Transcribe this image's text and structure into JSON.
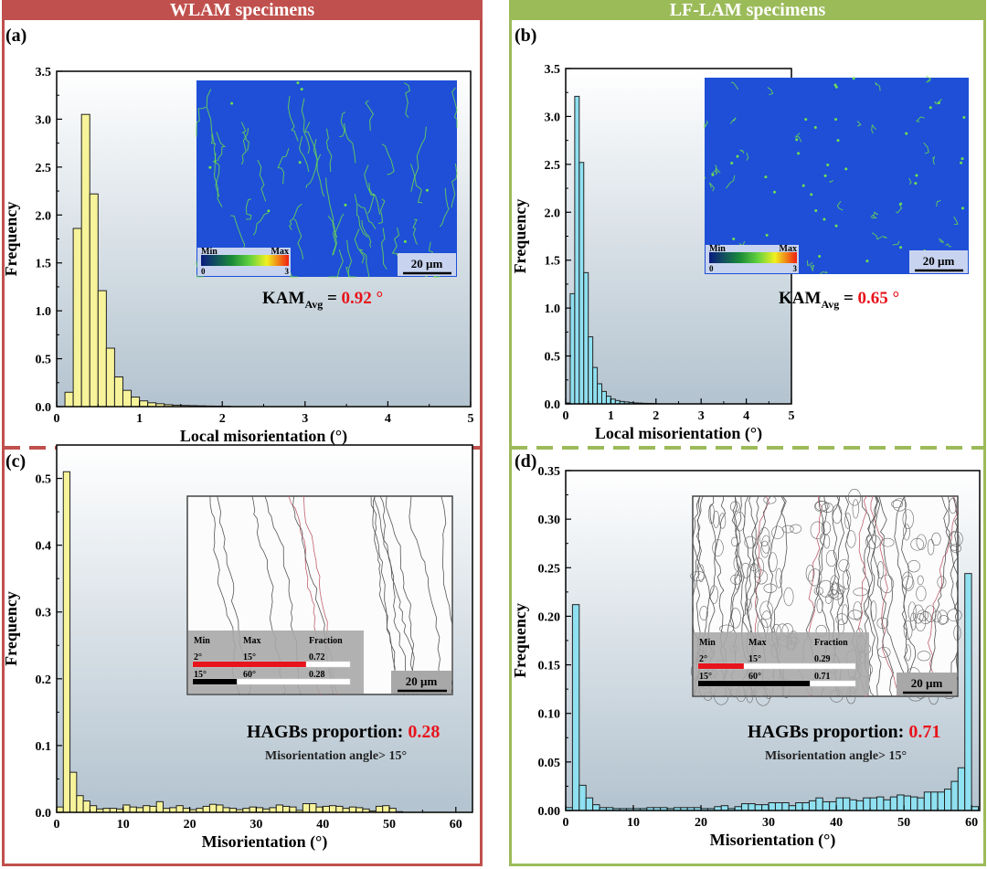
{
  "headers": {
    "left": "WLAM specimens",
    "right": "LF-LAM specimens"
  },
  "colors": {
    "left_frame": "#c0504d",
    "right_frame": "#9bbb59",
    "yellow_bar": "#f7f39a",
    "cyan_bar": "#8fe0f0",
    "highlight": "#e8141c"
  },
  "panels": {
    "a": {
      "label": "(a)",
      "kam_prefix": "KAM",
      "kam_sub": "Avg",
      "kam_eq": " = ",
      "kam_value": "0.92 °",
      "colorbar": {
        "min_label": "Min",
        "max_label": "Max",
        "min_value": "0",
        "max_value": "3"
      },
      "scale_bar": "20 µm"
    },
    "b": {
      "label": "(b)",
      "kam_prefix": "KAM",
      "kam_sub": "Avg",
      "kam_eq": " = ",
      "kam_value": "0.65 °",
      "colorbar": {
        "min_label": "Min",
        "max_label": "Max",
        "min_value": "0",
        "max_value": "3"
      },
      "scale_bar": "20 µm"
    },
    "c": {
      "label": "(c)",
      "hagb_label": "HAGBs proportion: ",
      "hagb_value": "0.28",
      "note": "Misorientation angle> 15°",
      "legend": {
        "headers": [
          "Min",
          "Max",
          "Fraction"
        ],
        "rows": [
          [
            "2°",
            "15°",
            "0.72"
          ],
          [
            "15°",
            "60°",
            "0.28"
          ]
        ],
        "fractions": [
          0.72,
          0.28
        ]
      },
      "scale_bar": "20 µm"
    },
    "d": {
      "label": "(d)",
      "hagb_label": "HAGBs proportion: ",
      "hagb_value": "0.71",
      "note": "Misorientation angle> 15°",
      "legend": {
        "headers": [
          "Min",
          "Max",
          "Fraction"
        ],
        "rows": [
          [
            "2°",
            "15°",
            "0.29"
          ],
          [
            "15°",
            "60°",
            "0.71"
          ]
        ],
        "fractions": [
          0.29,
          0.71
        ]
      },
      "scale_bar": "20 µm"
    }
  },
  "chart_data": [
    {
      "id": "a",
      "type": "bar",
      "title": "",
      "xlabel": "Local misorientation (°)",
      "ylabel": "Frequency",
      "xlim": [
        0,
        5
      ],
      "ylim": [
        0,
        3.5
      ],
      "bin_width": 0.1,
      "bin_start": 0.1,
      "xticks": [
        "0",
        "1",
        "2",
        "3",
        "4",
        "5"
      ],
      "yticks": [
        "0.0",
        "0.5",
        "1.0",
        "1.5",
        "2.0",
        "2.5",
        "3.0",
        "3.5"
      ],
      "values": [
        0.15,
        1.86,
        3.05,
        2.22,
        1.21,
        0.61,
        0.31,
        0.17,
        0.1,
        0.06,
        0.04,
        0.03,
        0.02,
        0.015,
        0.012,
        0.01,
        0.008,
        0.006,
        0.005,
        0.004
      ]
    },
    {
      "id": "b",
      "type": "bar",
      "title": "",
      "xlabel": "Local misorientation (°)",
      "ylabel": "Frequency",
      "xlim": [
        0,
        5
      ],
      "ylim": [
        0,
        3.5
      ],
      "bin_width": 0.1,
      "bin_start": 0.0,
      "xticks": [
        "0",
        "1",
        "2",
        "3",
        "4",
        "5"
      ],
      "yticks": [
        "0.0",
        "0.5",
        "1.0",
        "1.5",
        "2.0",
        "2.5",
        "3.0",
        "3.5"
      ],
      "values": [
        0.01,
        1.15,
        3.21,
        2.52,
        1.37,
        0.7,
        0.38,
        0.21,
        0.13,
        0.08,
        0.05,
        0.035,
        0.025,
        0.02,
        0.015,
        0.01,
        0.008,
        0.006,
        0.005,
        0.004
      ]
    },
    {
      "id": "c",
      "type": "bar",
      "title": "",
      "xlabel": "Misorientation (°)",
      "ylabel": "Frequency",
      "xlim": [
        0,
        62.5
      ],
      "ylim": [
        0,
        0.55
      ],
      "bin_width": 1,
      "bin_start": 0,
      "xticks": [
        "0",
        "10",
        "20",
        "30",
        "40",
        "50",
        "60"
      ],
      "yticks": [
        "0.0",
        "0.1",
        "0.2",
        "0.3",
        "0.4",
        "0.5"
      ],
      "values": [
        0.008,
        0.51,
        0.06,
        0.025,
        0.017,
        0.01,
        0.005,
        0.006,
        0.006,
        0.005,
        0.011,
        0.008,
        0.007,
        0.01,
        0.009,
        0.016,
        0.006,
        0.007,
        0.01,
        0.006,
        0.004,
        0.006,
        0.009,
        0.012,
        0.011,
        0.007,
        0.006,
        0.004,
        0.006,
        0.008,
        0.007,
        0.005,
        0.007,
        0.011,
        0.009,
        0.008,
        0.003,
        0.013,
        0.013,
        0.008,
        0.009,
        0.01,
        0.009,
        0.006,
        0.008,
        0.007,
        0.005,
        0.002,
        0.009,
        0.01,
        0.006,
        0.001
      ]
    },
    {
      "id": "d",
      "type": "bar",
      "title": "",
      "xlabel": "Misorientation (°)",
      "ylabel": "Frequency",
      "xlim": [
        0,
        61.2
      ],
      "ylim": [
        0,
        0.35
      ],
      "bin_width": 1,
      "bin_start": 0,
      "xticks": [
        "0",
        "10",
        "20",
        "30",
        "40",
        "50",
        "60"
      ],
      "yticks": [
        "0.00",
        "0.05",
        "0.10",
        "0.15",
        "0.20",
        "0.25",
        "0.30",
        "0.35"
      ],
      "values": [
        0.003,
        0.212,
        0.026,
        0.013,
        0.006,
        0.003,
        0.003,
        0.002,
        0.002,
        0.002,
        0.002,
        0.002,
        0.003,
        0.003,
        0.003,
        0.002,
        0.003,
        0.003,
        0.003,
        0.003,
        0.002,
        0.002,
        0.004,
        0.005,
        0.002,
        0.004,
        0.007,
        0.007,
        0.006,
        0.006,
        0.008,
        0.008,
        0.008,
        0.005,
        0.008,
        0.008,
        0.01,
        0.013,
        0.009,
        0.009,
        0.013,
        0.013,
        0.011,
        0.01,
        0.013,
        0.013,
        0.014,
        0.011,
        0.014,
        0.016,
        0.015,
        0.014,
        0.013,
        0.019,
        0.019,
        0.019,
        0.022,
        0.03,
        0.044,
        0.244,
        0.004
      ]
    }
  ]
}
